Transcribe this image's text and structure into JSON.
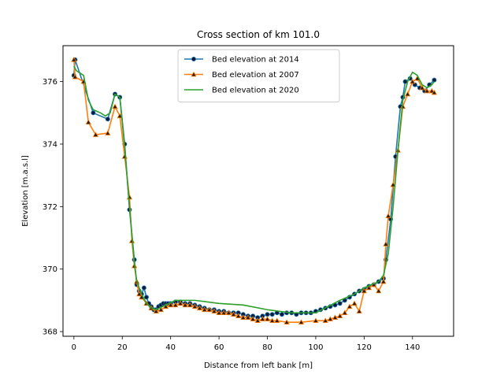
{
  "chart_data": {
    "type": "line",
    "title": "Cross section of km 101.0",
    "xlabel": "Distance from left bank [m]",
    "ylabel": "Elevation [m.a.s.l]",
    "xlim": [
      -4.5,
      157
    ],
    "ylim": [
      367.85,
      377.15
    ],
    "xticks": [
      0,
      20,
      40,
      60,
      80,
      100,
      120,
      140
    ],
    "yticks": [
      368,
      370,
      372,
      374,
      376
    ],
    "grid": false,
    "legend_position": "top-center",
    "series": [
      {
        "name": "Bed elevation at 2014",
        "color": "#1f77b4",
        "marker": "circle",
        "marker_color": "#0b1a3a",
        "points": [
          [
            0,
            376.2
          ],
          [
            0.5,
            376.7
          ],
          [
            8,
            375.0
          ],
          [
            14,
            374.8
          ],
          [
            17,
            375.6
          ],
          [
            19,
            375.5
          ],
          [
            21,
            374.0
          ],
          [
            23,
            371.9
          ],
          [
            25,
            370.3
          ],
          [
            26,
            369.5
          ],
          [
            27,
            369.3
          ],
          [
            28,
            369.2
          ],
          [
            29,
            369.4
          ],
          [
            30,
            369.1
          ],
          [
            31,
            368.9
          ],
          [
            32,
            368.8
          ],
          [
            33,
            368.7
          ],
          [
            34,
            368.7
          ],
          [
            35,
            368.8
          ],
          [
            36,
            368.85
          ],
          [
            37,
            368.9
          ],
          [
            38,
            368.9
          ],
          [
            39,
            368.9
          ],
          [
            40,
            368.9
          ],
          [
            42,
            368.95
          ],
          [
            44,
            368.95
          ],
          [
            46,
            368.9
          ],
          [
            48,
            368.9
          ],
          [
            50,
            368.85
          ],
          [
            52,
            368.8
          ],
          [
            54,
            368.75
          ],
          [
            56,
            368.7
          ],
          [
            58,
            368.7
          ],
          [
            60,
            368.65
          ],
          [
            62,
            368.65
          ],
          [
            64,
            368.6
          ],
          [
            66,
            368.6
          ],
          [
            68,
            368.6
          ],
          [
            70,
            368.55
          ],
          [
            72,
            368.5
          ],
          [
            74,
            368.5
          ],
          [
            76,
            368.45
          ],
          [
            78,
            368.5
          ],
          [
            80,
            368.55
          ],
          [
            82,
            368.55
          ],
          [
            84,
            368.6
          ],
          [
            86,
            368.55
          ],
          [
            88,
            368.6
          ],
          [
            90,
            368.6
          ],
          [
            92,
            368.55
          ],
          [
            94,
            368.6
          ],
          [
            96,
            368.6
          ],
          [
            98,
            368.6
          ],
          [
            100,
            368.65
          ],
          [
            102,
            368.7
          ],
          [
            104,
            368.75
          ],
          [
            106,
            368.8
          ],
          [
            108,
            368.85
          ],
          [
            110,
            368.9
          ],
          [
            112,
            369.0
          ],
          [
            114,
            369.1
          ],
          [
            116,
            369.2
          ],
          [
            118,
            369.3
          ],
          [
            120,
            369.35
          ],
          [
            122,
            369.45
          ],
          [
            124,
            369.5
          ],
          [
            126,
            369.6
          ],
          [
            128,
            369.7
          ],
          [
            129,
            370.3
          ],
          [
            131,
            371.6
          ],
          [
            133,
            373.6
          ],
          [
            135,
            375.2
          ],
          [
            136,
            375.5
          ],
          [
            137,
            376.0
          ],
          [
            139,
            376.1
          ],
          [
            141,
            375.9
          ],
          [
            143,
            375.8
          ],
          [
            145,
            375.7
          ],
          [
            147,
            375.9
          ],
          [
            149,
            376.05
          ]
        ]
      },
      {
        "name": "Bed elevation at 2007",
        "color": "#ff7f0e",
        "marker": "triangle",
        "marker_color": "#2a1a00",
        "points": [
          [
            0,
            376.7
          ],
          [
            0.5,
            376.15
          ],
          [
            4,
            376.0
          ],
          [
            6,
            374.7
          ],
          [
            9,
            374.3
          ],
          [
            14,
            374.35
          ],
          [
            17,
            375.2
          ],
          [
            19,
            374.9
          ],
          [
            21,
            373.6
          ],
          [
            23,
            372.3
          ],
          [
            24,
            370.9
          ],
          [
            25,
            370.1
          ],
          [
            26,
            369.6
          ],
          [
            27,
            369.2
          ],
          [
            28,
            369.1
          ],
          [
            30,
            368.9
          ],
          [
            32,
            368.75
          ],
          [
            34,
            368.65
          ],
          [
            36,
            368.7
          ],
          [
            38,
            368.8
          ],
          [
            40,
            368.85
          ],
          [
            42,
            368.85
          ],
          [
            44,
            368.9
          ],
          [
            46,
            368.85
          ],
          [
            48,
            368.85
          ],
          [
            50,
            368.8
          ],
          [
            52,
            368.75
          ],
          [
            54,
            368.7
          ],
          [
            56,
            368.7
          ],
          [
            58,
            368.65
          ],
          [
            60,
            368.6
          ],
          [
            62,
            368.6
          ],
          [
            64,
            368.6
          ],
          [
            66,
            368.55
          ],
          [
            68,
            368.5
          ],
          [
            70,
            368.45
          ],
          [
            72,
            368.45
          ],
          [
            74,
            368.4
          ],
          [
            76,
            368.35
          ],
          [
            78,
            368.4
          ],
          [
            80,
            368.4
          ],
          [
            82,
            368.35
          ],
          [
            84,
            368.35
          ],
          [
            88,
            368.3
          ],
          [
            94,
            368.3
          ],
          [
            100,
            368.35
          ],
          [
            104,
            368.35
          ],
          [
            106,
            368.4
          ],
          [
            108,
            368.45
          ],
          [
            110,
            368.5
          ],
          [
            112,
            368.6
          ],
          [
            114,
            368.8
          ],
          [
            116,
            368.9
          ],
          [
            118,
            368.65
          ],
          [
            120,
            369.3
          ],
          [
            122,
            369.4
          ],
          [
            124,
            369.5
          ],
          [
            126,
            369.3
          ],
          [
            128,
            369.6
          ],
          [
            129,
            370.8
          ],
          [
            130,
            371.7
          ],
          [
            132,
            372.7
          ],
          [
            134,
            373.8
          ],
          [
            136,
            375.2
          ],
          [
            138,
            375.6
          ],
          [
            140,
            376.0
          ],
          [
            142,
            376.1
          ],
          [
            144,
            375.8
          ],
          [
            146,
            375.7
          ],
          [
            148,
            375.7
          ],
          [
            149,
            375.65
          ]
        ]
      },
      {
        "name": "Bed elevation at 2020",
        "color": "#2ca02c",
        "marker": "none",
        "points": [
          [
            0,
            376.5
          ],
          [
            1,
            376.35
          ],
          [
            4,
            376.2
          ],
          [
            6,
            375.4
          ],
          [
            8,
            375.1
          ],
          [
            11,
            375.0
          ],
          [
            13,
            374.9
          ],
          [
            15,
            375.0
          ],
          [
            17,
            375.6
          ],
          [
            19,
            375.5
          ],
          [
            21,
            373.9
          ],
          [
            23,
            372.0
          ],
          [
            25,
            370.2
          ],
          [
            26,
            369.6
          ],
          [
            28,
            369.2
          ],
          [
            30,
            368.9
          ],
          [
            32,
            368.75
          ],
          [
            34,
            368.7
          ],
          [
            38,
            368.85
          ],
          [
            42,
            369.0
          ],
          [
            50,
            369.0
          ],
          [
            60,
            368.9
          ],
          [
            70,
            368.85
          ],
          [
            80,
            368.7
          ],
          [
            90,
            368.6
          ],
          [
            100,
            368.6
          ],
          [
            110,
            369.0
          ],
          [
            116,
            369.2
          ],
          [
            120,
            369.4
          ],
          [
            126,
            369.6
          ],
          [
            128,
            369.8
          ],
          [
            130,
            370.5
          ],
          [
            132,
            372.0
          ],
          [
            134,
            373.8
          ],
          [
            136,
            375.4
          ],
          [
            138,
            376.0
          ],
          [
            140,
            376.3
          ],
          [
            142,
            376.2
          ],
          [
            144,
            375.9
          ],
          [
            146,
            375.8
          ],
          [
            148,
            375.9
          ],
          [
            149,
            376.0
          ]
        ]
      }
    ]
  }
}
